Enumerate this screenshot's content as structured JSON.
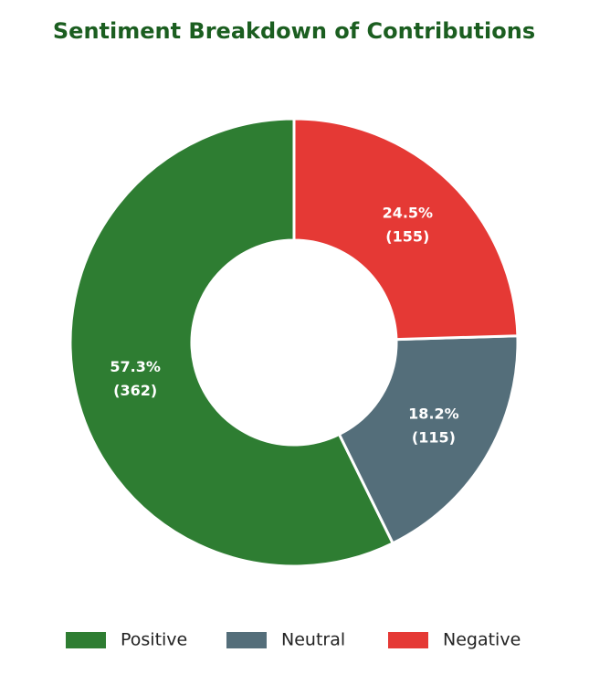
{
  "chart_data": {
    "type": "donut",
    "title": "Sentiment Breakdown of Contributions",
    "categories": [
      "Positive",
      "Neutral",
      "Negative"
    ],
    "values": [
      362,
      115,
      155
    ],
    "value_labels": [
      "(362)",
      "(115)",
      "(155)"
    ],
    "percent_labels": [
      "57.3%",
      "18.2%",
      "24.5%"
    ],
    "colors": [
      "#2e7d32",
      "#546e7a",
      "#e53935"
    ]
  }
}
